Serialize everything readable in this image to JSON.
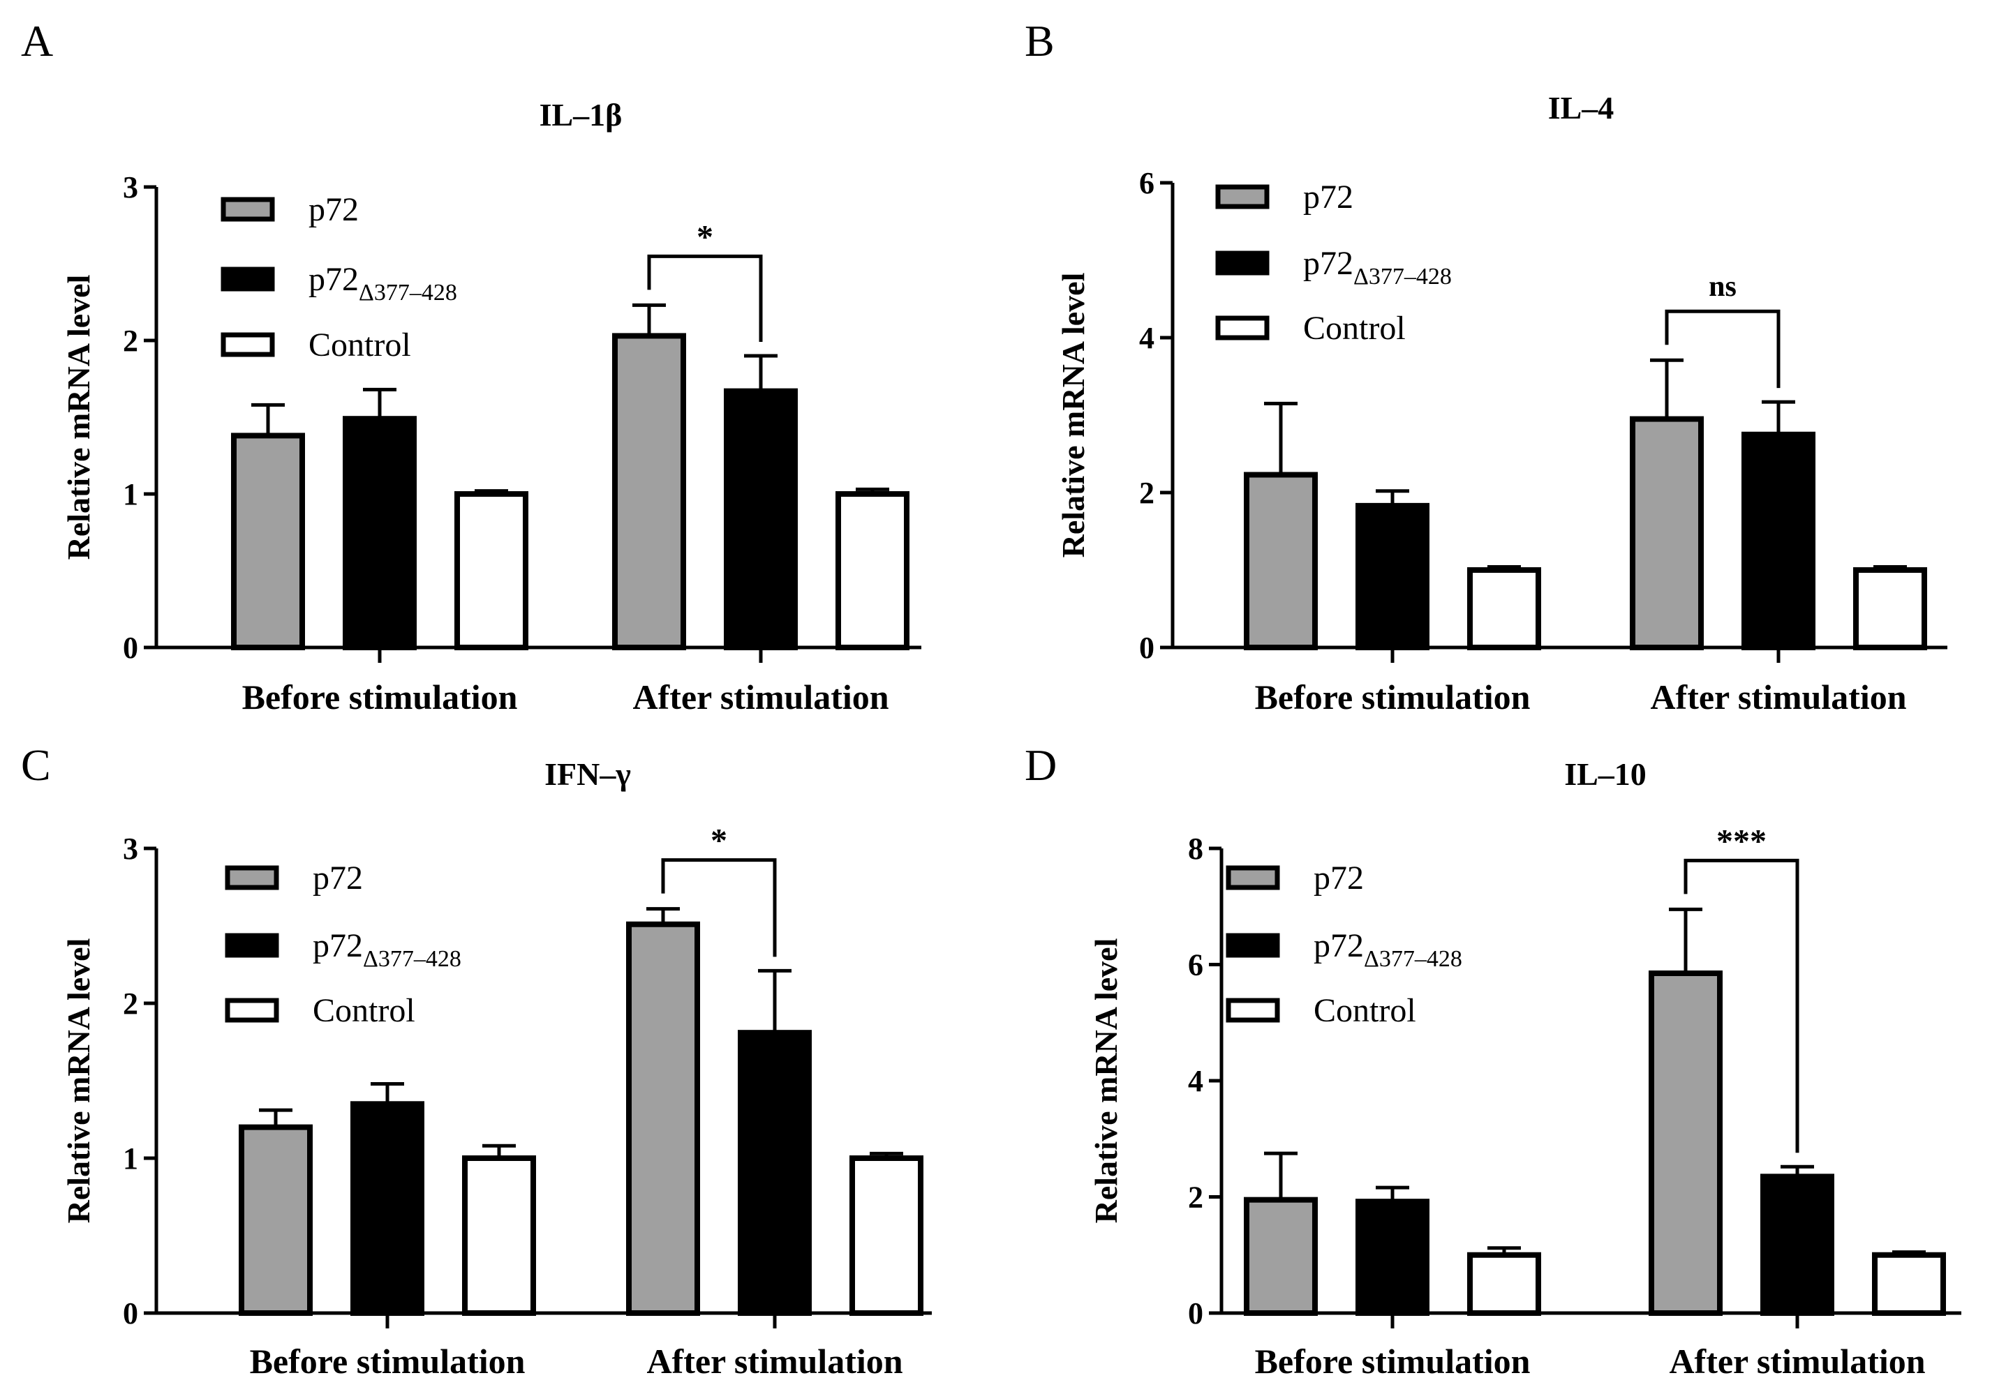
{
  "figure": {
    "legend": {
      "items": [
        {
          "name": "p72",
          "sub": "",
          "color": "#a0a0a0"
        },
        {
          "name": "p72",
          "sub": "Δ377–428",
          "color": "#000000"
        },
        {
          "name": "Control",
          "sub": "",
          "color": "#ffffff"
        }
      ]
    }
  },
  "chart_data": [
    {
      "panel": "A",
      "type": "bar",
      "title": "IL–1β",
      "ylabel": "Relative mRNA level",
      "xlabel": "",
      "categories": [
        "Before stimulation",
        "After stimulation"
      ],
      "ylim": [
        0,
        3
      ],
      "yticks": [
        "0",
        "1",
        "2",
        "3"
      ],
      "series": [
        {
          "name": "p72",
          "values": [
            1.38,
            2.03
          ],
          "errors": [
            0.2,
            0.2
          ]
        },
        {
          "name": "p72Δ377–428",
          "values": [
            1.49,
            1.67
          ],
          "errors": [
            0.19,
            0.23
          ]
        },
        {
          "name": "Control",
          "values": [
            1.0,
            1.0
          ],
          "errors": [
            0.02,
            0.03
          ]
        }
      ],
      "significance": [
        {
          "group": 1,
          "from": 0,
          "to": 1,
          "label": "*"
        }
      ]
    },
    {
      "panel": "B",
      "type": "bar",
      "title": "IL–4",
      "ylabel": "Relative mRNA level",
      "xlabel": "",
      "categories": [
        "Before stimulation",
        "After stimulation"
      ],
      "ylim": [
        0,
        6
      ],
      "yticks": [
        "0",
        "2",
        "4",
        "6"
      ],
      "series": [
        {
          "name": "p72",
          "values": [
            2.23,
            2.95
          ],
          "errors": [
            0.92,
            0.76
          ]
        },
        {
          "name": "p72Δ377–428",
          "values": [
            1.83,
            2.75
          ],
          "errors": [
            0.19,
            0.42
          ]
        },
        {
          "name": "Control",
          "values": [
            1.0,
            1.0
          ],
          "errors": [
            0.04,
            0.04
          ]
        }
      ],
      "significance": [
        {
          "group": 1,
          "from": 0,
          "to": 1,
          "label": "ns"
        }
      ]
    },
    {
      "panel": "C",
      "type": "bar",
      "title": "IFN–γ",
      "ylabel": "Relative mRNA level",
      "xlabel": "",
      "categories": [
        "Before stimulation",
        "After stimulation"
      ],
      "ylim": [
        0,
        3
      ],
      "yticks": [
        "0",
        "1",
        "2",
        "3"
      ],
      "series": [
        {
          "name": "p72",
          "values": [
            1.2,
            2.51
          ],
          "errors": [
            0.11,
            0.1
          ]
        },
        {
          "name": "p72Δ377–428",
          "values": [
            1.35,
            1.81
          ],
          "errors": [
            0.13,
            0.4
          ]
        },
        {
          "name": "Control",
          "values": [
            1.0,
            1.0
          ],
          "errors": [
            0.08,
            0.03
          ]
        }
      ],
      "significance": [
        {
          "group": 1,
          "from": 0,
          "to": 1,
          "label": "*"
        }
      ]
    },
    {
      "panel": "D",
      "type": "bar",
      "title": "IL–10",
      "ylabel": "Relative mRNA level",
      "xlabel": "",
      "categories": [
        "Before stimulation",
        "After stimulation"
      ],
      "ylim": [
        0,
        8
      ],
      "yticks": [
        "0",
        "2",
        "4",
        "6",
        "8"
      ],
      "series": [
        {
          "name": "p72",
          "values": [
            1.95,
            5.85
          ],
          "errors": [
            0.8,
            1.1
          ]
        },
        {
          "name": "p72Δ377–428",
          "values": [
            1.92,
            2.35
          ],
          "errors": [
            0.24,
            0.17
          ]
        },
        {
          "name": "Control",
          "values": [
            1.0,
            1.0
          ],
          "errors": [
            0.12,
            0.05
          ]
        }
      ],
      "significance": [
        {
          "group": 1,
          "from": 0,
          "to": 1,
          "label": "***"
        }
      ]
    }
  ]
}
